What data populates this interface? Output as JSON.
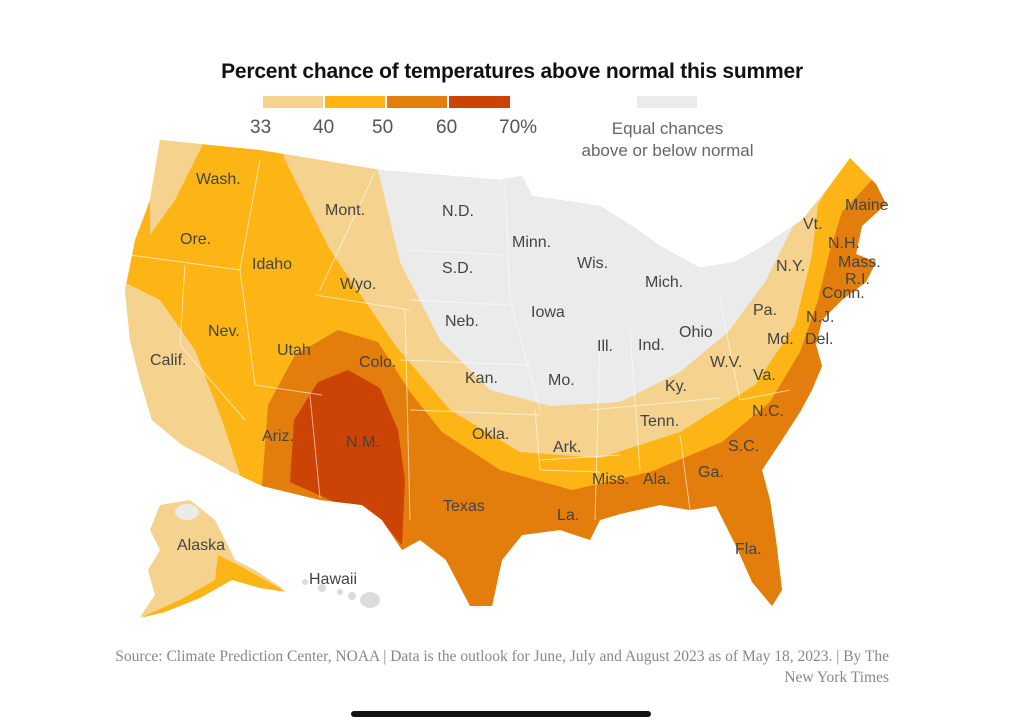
{
  "title": "Percent chance of temperatures above normal this summer",
  "legend": {
    "ticks": [
      "33",
      "40",
      "50",
      "60",
      "70%"
    ],
    "colors": [
      "#f5d38e",
      "#fdb515",
      "#e37d0c",
      "#cb4305"
    ],
    "equal_color": "#ebebeb",
    "equal_label_line1": "Equal chances",
    "equal_label_line2": "above or below normal"
  },
  "states": [
    "Wash.",
    "Ore.",
    "Calif.",
    "Idaho",
    "Nev.",
    "Mont.",
    "Wyo.",
    "Utah",
    "Ariz.",
    "Colo.",
    "N.M.",
    "N.D.",
    "S.D.",
    "Neb.",
    "Kan.",
    "Okla.",
    "Texas",
    "Minn.",
    "Iowa",
    "Mo.",
    "Ark.",
    "La.",
    "Wis.",
    "Ill.",
    "Mich.",
    "Ind.",
    "Ohio",
    "Ky.",
    "Tenn.",
    "Miss.",
    "Ala.",
    "Ga.",
    "Fla.",
    "S.C.",
    "N.C.",
    "Va.",
    "W.V.",
    "Md.",
    "Del.",
    "Pa.",
    "N.J.",
    "N.Y.",
    "Conn.",
    "R.I.",
    "Mass.",
    "Vt.",
    "N.H.",
    "Maine",
    "Alaska",
    "Hawaii"
  ],
  "source": "Source: Climate Prediction Center, NOAA | Data is the outlook for June, July and August 2023 as of May 18, 2023. | By The New York Times"
}
